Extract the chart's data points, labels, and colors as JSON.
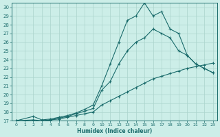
{
  "title": "",
  "xlabel": "Humidex (Indice chaleur)",
  "bg_color": "#cceee8",
  "grid_color": "#aad4cc",
  "line_color": "#1a6b6b",
  "xlim": [
    -0.5,
    23.5
  ],
  "ylim": [
    17,
    30.5
  ],
  "xticks": [
    0,
    1,
    2,
    3,
    4,
    5,
    6,
    7,
    8,
    9,
    10,
    11,
    12,
    13,
    14,
    15,
    16,
    17,
    18,
    19,
    20,
    21,
    22,
    23
  ],
  "yticks": [
    17,
    18,
    19,
    20,
    21,
    22,
    23,
    24,
    25,
    26,
    27,
    28,
    29,
    30
  ],
  "series1_x": [
    0,
    2,
    3,
    4,
    5,
    6,
    7,
    8,
    9,
    10,
    11,
    12,
    13,
    14,
    15,
    16,
    17,
    18,
    19,
    20,
    21,
    22,
    23
  ],
  "series1_y": [
    17.0,
    17.5,
    17.1,
    17.2,
    17.4,
    17.6,
    17.9,
    18.3,
    18.8,
    21.0,
    23.5,
    26.0,
    28.5,
    29.0,
    30.5,
    29.0,
    29.5,
    27.5,
    27.0,
    24.5,
    23.5,
    23.0,
    22.5
  ],
  "series2_x": [
    0,
    2,
    3,
    4,
    5,
    6,
    7,
    8,
    9,
    10,
    11,
    12,
    13,
    14,
    15,
    16,
    17,
    18,
    19,
    20,
    21,
    22,
    23
  ],
  "series2_y": [
    17.0,
    17.1,
    17.0,
    17.1,
    17.3,
    17.5,
    17.8,
    18.1,
    18.4,
    20.5,
    21.5,
    23.5,
    25.0,
    26.0,
    26.5,
    27.5,
    27.0,
    26.5,
    25.0,
    24.5,
    23.5,
    23.0,
    22.5
  ],
  "series3_x": [
    0,
    2,
    3,
    4,
    5,
    6,
    7,
    8,
    9,
    10,
    11,
    12,
    13,
    14,
    15,
    16,
    17,
    18,
    19,
    20,
    21,
    22,
    23
  ],
  "series3_y": [
    17.0,
    17.0,
    17.0,
    17.1,
    17.2,
    17.4,
    17.6,
    17.8,
    18.0,
    18.8,
    19.3,
    19.8,
    20.3,
    20.8,
    21.3,
    21.8,
    22.1,
    22.4,
    22.7,
    23.0,
    23.2,
    23.4,
    23.6
  ]
}
